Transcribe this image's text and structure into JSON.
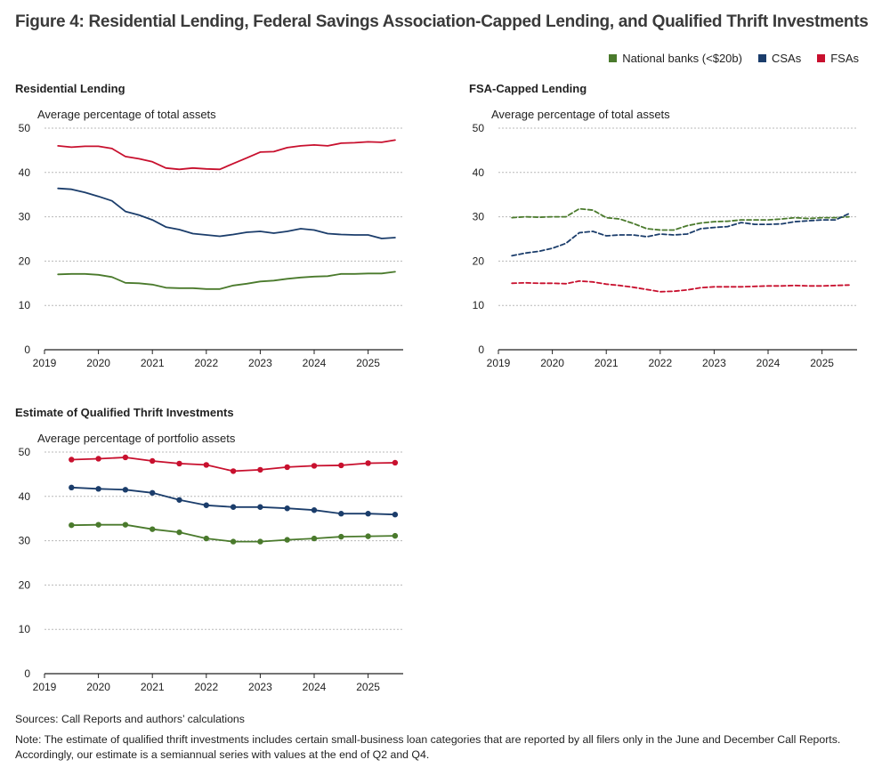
{
  "figure_title": "Figure 4:  Residential Lending, Federal Savings Association-Capped Lending, and Qualified Thrift Investments",
  "legend": [
    {
      "label": "National banks (<$20b)",
      "color": "#4a7a2c"
    },
    {
      "label": "CSAs",
      "color": "#1b3d6b"
    },
    {
      "label": "FSAs",
      "color": "#c8102e"
    }
  ],
  "sources": "Sources: Call Reports and authors’ calculations",
  "note_line1": "Note: The estimate of qualified thrift investments includes certain small-business loan categories that are reported by all filers only in the June and December Call Reports.",
  "note_line2": "Accordingly, our estimate is a semiannual series with values at the end of Q2 and Q4.",
  "chart_data": [
    {
      "type": "line",
      "title": "Residential Lending",
      "ylabel": "Average percentage of total assets",
      "ylim": [
        0,
        50
      ],
      "yticks": [
        0,
        10,
        20,
        30,
        40,
        50
      ],
      "xlim": [
        2019,
        2025.65
      ],
      "xticks": [
        "2019",
        "2020",
        "2021",
        "2022",
        "2023",
        "2024",
        "2025"
      ],
      "line_style": "solid",
      "markers": false,
      "x": [
        2019.25,
        2019.5,
        2019.75,
        2020.0,
        2020.25,
        2020.5,
        2020.75,
        2021.0,
        2021.25,
        2021.5,
        2021.75,
        2022.0,
        2022.25,
        2022.5,
        2022.75,
        2023.0,
        2023.25,
        2023.5,
        2023.75,
        2024.0,
        2024.25,
        2024.5,
        2024.75,
        2025.0,
        2025.25,
        2025.5
      ],
      "series": [
        {
          "name": "National banks (<$20b)",
          "color": "#4a7a2c",
          "values": [
            17.0,
            17.1,
            17.1,
            16.9,
            16.4,
            15.1,
            15.0,
            14.7,
            14.0,
            13.9,
            13.9,
            13.7,
            13.7,
            14.5,
            14.9,
            15.4,
            15.6,
            16.0,
            16.3,
            16.5,
            16.6,
            17.1,
            17.1,
            17.2,
            17.2,
            17.6
          ]
        },
        {
          "name": "CSAs",
          "color": "#1b3d6b",
          "values": [
            36.4,
            36.2,
            35.5,
            34.6,
            33.6,
            31.2,
            30.4,
            29.3,
            27.7,
            27.1,
            26.2,
            25.9,
            25.6,
            26.0,
            26.5,
            26.7,
            26.3,
            26.7,
            27.3,
            27.0,
            26.2,
            26.0,
            25.9,
            25.9,
            25.1,
            25.3
          ]
        },
        {
          "name": "FSAs",
          "color": "#c8102e",
          "values": [
            46.0,
            45.7,
            45.9,
            45.9,
            45.4,
            43.6,
            43.1,
            42.4,
            41.0,
            40.7,
            41.0,
            40.8,
            40.7,
            42.0,
            43.3,
            44.6,
            44.7,
            45.6,
            46.0,
            46.2,
            46.0,
            46.6,
            46.7,
            46.9,
            46.8,
            47.3
          ]
        }
      ]
    },
    {
      "type": "line",
      "title": "FSA-Capped Lending",
      "ylabel": "Average percentage of total assets",
      "ylim": [
        0,
        50
      ],
      "yticks": [
        0,
        10,
        20,
        30,
        40,
        50
      ],
      "xlim": [
        2019,
        2025.65
      ],
      "xticks": [
        "2019",
        "2020",
        "2021",
        "2022",
        "2023",
        "2024",
        "2025"
      ],
      "line_style": "dashed",
      "markers": false,
      "x": [
        2019.25,
        2019.5,
        2019.75,
        2020.0,
        2020.25,
        2020.5,
        2020.75,
        2021.0,
        2021.25,
        2021.5,
        2021.75,
        2022.0,
        2022.25,
        2022.5,
        2022.75,
        2023.0,
        2023.25,
        2023.5,
        2023.75,
        2024.0,
        2024.25,
        2024.5,
        2024.75,
        2025.0,
        2025.25,
        2025.5
      ],
      "series": [
        {
          "name": "National banks (<$20b)",
          "color": "#4a7a2c",
          "values": [
            29.8,
            30.0,
            29.9,
            30.0,
            30.0,
            31.8,
            31.5,
            29.8,
            29.5,
            28.5,
            27.3,
            27.0,
            27.0,
            28.0,
            28.6,
            28.9,
            29.0,
            29.3,
            29.3,
            29.3,
            29.5,
            29.8,
            29.6,
            29.8,
            29.8,
            30.0
          ]
        },
        {
          "name": "CSAs",
          "color": "#1b3d6b",
          "values": [
            21.2,
            21.8,
            22.2,
            22.9,
            24.0,
            26.4,
            26.7,
            25.7,
            25.9,
            25.9,
            25.5,
            26.1,
            25.9,
            26.1,
            27.3,
            27.6,
            27.8,
            28.7,
            28.3,
            28.3,
            28.4,
            28.9,
            29.1,
            29.3,
            29.3,
            30.7
          ]
        },
        {
          "name": "FSAs",
          "color": "#c8102e",
          "values": [
            15.0,
            15.1,
            15.0,
            15.0,
            14.9,
            15.5,
            15.3,
            14.8,
            14.5,
            14.1,
            13.6,
            13.1,
            13.2,
            13.5,
            14.0,
            14.2,
            14.2,
            14.2,
            14.3,
            14.4,
            14.4,
            14.5,
            14.4,
            14.4,
            14.5,
            14.6
          ]
        }
      ]
    },
    {
      "type": "line",
      "title": "Estimate of Qualified Thrift Investments",
      "ylabel": "Average percentage of portfolio assets",
      "ylim": [
        0,
        50
      ],
      "yticks": [
        0,
        10,
        20,
        30,
        40,
        50
      ],
      "xlim": [
        2019,
        2025.65
      ],
      "xticks": [
        "2019",
        "2020",
        "2021",
        "2022",
        "2023",
        "2024",
        "2025"
      ],
      "line_style": "solid",
      "markers": true,
      "x": [
        2019.5,
        2020.0,
        2020.5,
        2021.0,
        2021.5,
        2022.0,
        2022.5,
        2023.0,
        2023.5,
        2024.0,
        2024.5,
        2025.0,
        2025.5
      ],
      "series": [
        {
          "name": "National banks (<$20b)",
          "color": "#4a7a2c",
          "values": [
            33.5,
            33.6,
            33.6,
            32.6,
            31.9,
            30.5,
            29.8,
            29.8,
            30.2,
            30.5,
            30.9,
            31.0,
            31.1
          ]
        },
        {
          "name": "CSAs",
          "color": "#1b3d6b",
          "values": [
            42.0,
            41.7,
            41.5,
            40.8,
            39.2,
            38.0,
            37.6,
            37.6,
            37.3,
            36.9,
            36.1,
            36.1,
            35.9
          ]
        },
        {
          "name": "FSAs",
          "color": "#c8102e",
          "values": [
            48.3,
            48.5,
            48.8,
            48.0,
            47.4,
            47.1,
            45.7,
            46.0,
            46.6,
            46.9,
            47.0,
            47.5,
            47.6
          ]
        }
      ]
    }
  ]
}
